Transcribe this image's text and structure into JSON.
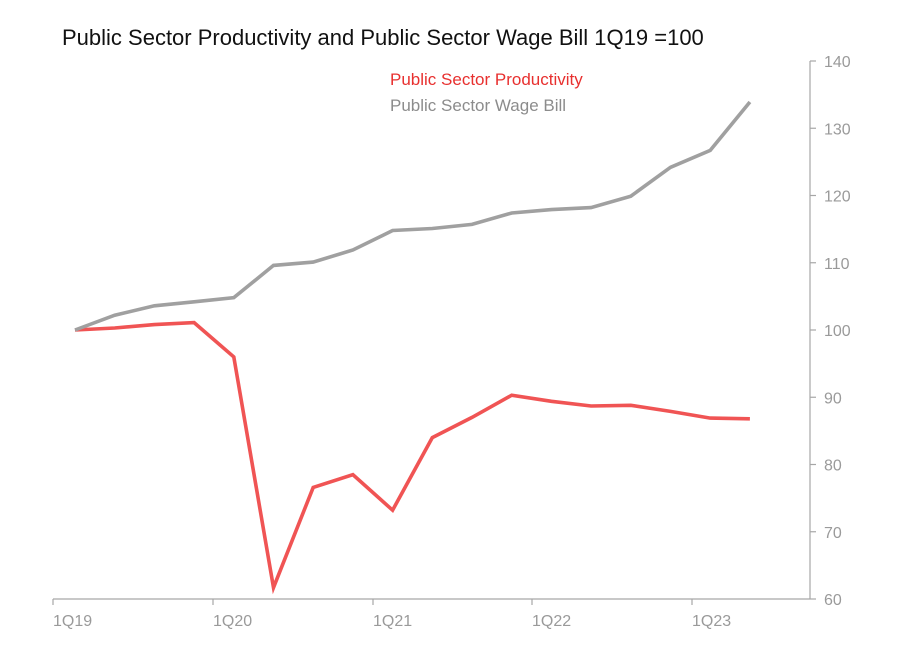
{
  "chart_data": {
    "type": "line",
    "title": "Public Sector Productivity and Public Sector Wage Bill 1Q19 =100",
    "xlabel": "",
    "ylabel": "",
    "x": [
      "1Q19",
      "2Q19",
      "3Q19",
      "4Q19",
      "1Q20",
      "2Q20",
      "3Q20",
      "4Q20",
      "1Q21",
      "2Q21",
      "3Q21",
      "4Q21",
      "1Q22",
      "2Q22",
      "3Q22",
      "4Q22",
      "1Q23",
      "2Q23"
    ],
    "x_tick_labels": [
      "1Q19",
      "1Q20",
      "1Q21",
      "1Q22",
      "1Q23"
    ],
    "ylim": [
      60,
      140
    ],
    "y_ticks": [
      60,
      70,
      80,
      90,
      100,
      110,
      120,
      130,
      140
    ],
    "y_axis_side": "right",
    "grid": false,
    "legend_position": "top-center",
    "series": [
      {
        "name": "Public Sector Productivity",
        "color": "#f05454",
        "values": [
          100,
          100.3,
          100.8,
          101.1,
          96,
          61.7,
          76.6,
          78.5,
          73.2,
          84,
          87,
          90.3,
          89.4,
          88.7,
          88.8,
          87.9,
          86.9,
          86.8
        ]
      },
      {
        "name": "Public Sector Wage Bill",
        "color": "#a0a0a0",
        "values": [
          100,
          102.2,
          103.6,
          104.2,
          104.8,
          109.6,
          110.1,
          111.9,
          114.8,
          115.1,
          115.7,
          117.4,
          117.9,
          118.2,
          119.9,
          124.2,
          126.7,
          133.9
        ]
      }
    ],
    "legend_colors": {
      "productivity": "#e8302f",
      "wage_bill": "#8c8c8c"
    }
  }
}
